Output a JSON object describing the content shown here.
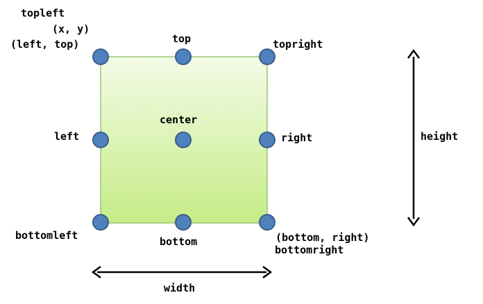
{
  "colors": {
    "rect_fill_top": "#f3fbe7",
    "rect_fill_bottom": "#c6ec86",
    "rect_stroke": "#9cc472",
    "point_fill": "#4f81bd",
    "point_stroke": "#385d8a",
    "arrow": "#000000"
  },
  "labels": {
    "topleft": "topleft",
    "xy": "(x, y)",
    "left_top": "(left, top)",
    "top": "top",
    "topright": "topright",
    "center": "center",
    "left": "left",
    "right": "right",
    "bottomleft": "bottomleft",
    "bottom": "bottom",
    "bottom_right": "(bottom, right)",
    "bottomright": "bottomright",
    "height": "height",
    "width": "width"
  }
}
